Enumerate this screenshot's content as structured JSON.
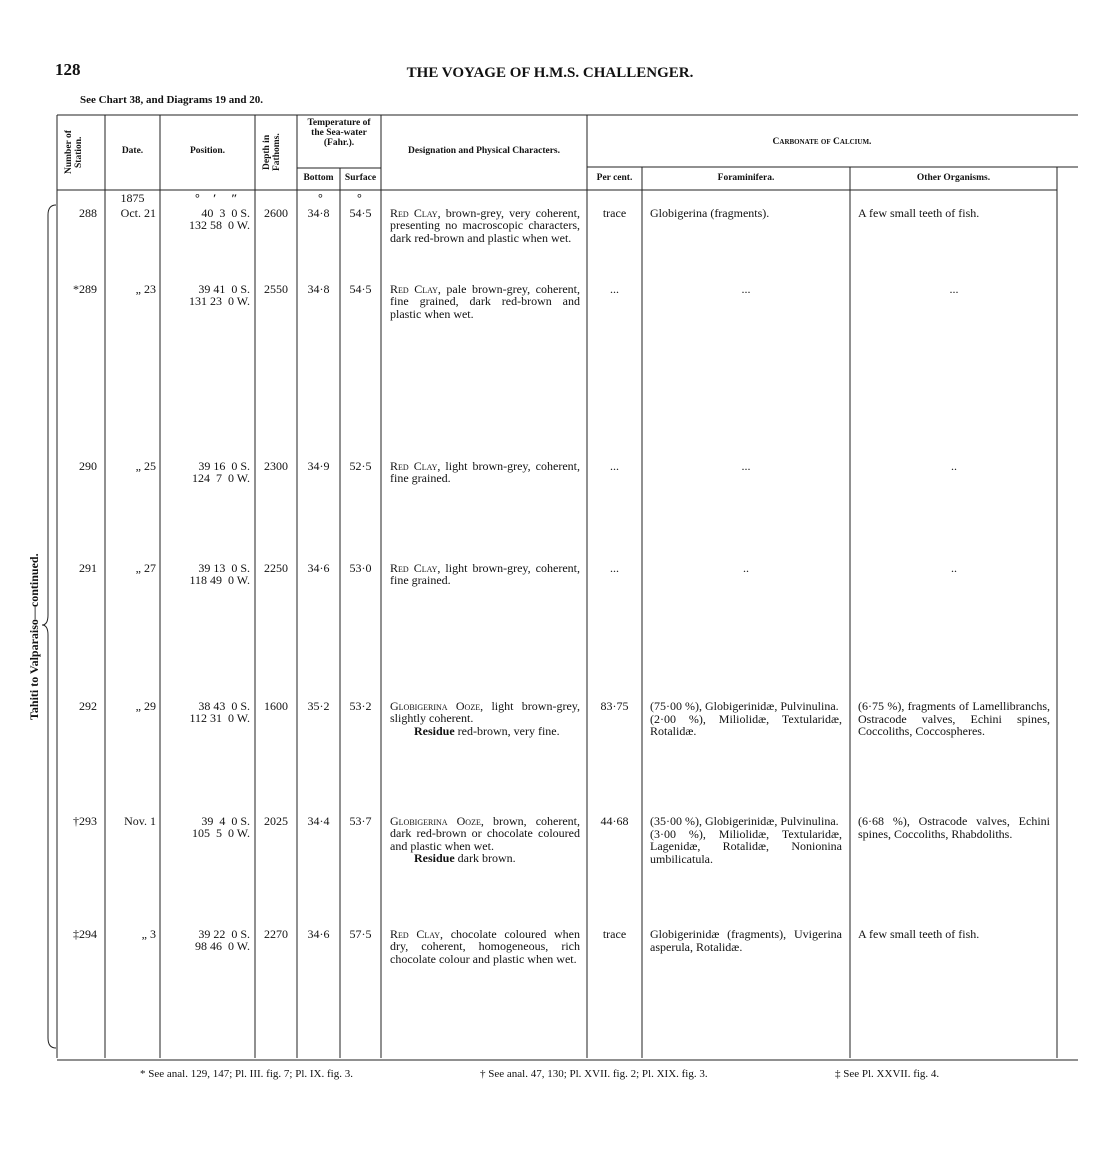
{
  "header": {
    "page_number": "128",
    "title": "THE VOYAGE OF H.M.S. CHALLENGER.",
    "reference": "See Chart 38, and Diagrams 19 and 20."
  },
  "side_label": "Tahiti to Valparaiso—continued.",
  "table": {
    "columns": {
      "station": "Number of Station.",
      "date": "Date.",
      "position": "Position.",
      "depth": "Depth in Fathoms.",
      "temperature": "Temperature of the Sea-water (Fahr.).",
      "bottom": "Bottom",
      "surface": "Surface",
      "designation": "Designation and Physical Characters.",
      "carbonate": "Carbonate of Calcium.",
      "percent": "Per cent.",
      "foraminifera": "Foraminifera.",
      "other": "Other Organisms."
    },
    "units": {
      "degree": "°",
      "minute": "′",
      "second": "″"
    },
    "year": "1875",
    "rows": [
      {
        "station": "288",
        "date": "Oct. 21",
        "lat": "40  3  0 S.",
        "lon": "132 58  0 W.",
        "depth": "2600",
        "bottom": "34·8",
        "surface": "54·5",
        "designation_name": "Red Clay",
        "designation_text": ", brown-grey, very coherent, presenting no macroscopic characters, dark red-brown and plastic when wet.",
        "percent": "trace",
        "foraminifera": [
          "Globigerina (fragments)."
        ],
        "other": "A few small teeth of fish."
      },
      {
        "station": "*289",
        "date": "„ 23",
        "lat": "39 41  0 S.",
        "lon": "131 23  0 W.",
        "depth": "2550",
        "bottom": "34·8",
        "surface": "54·5",
        "designation_name": "Red Clay",
        "designation_text": ", pale brown-grey, coherent, fine grained, dark red-brown and plastic when wet.",
        "percent": "...",
        "foraminifera": [
          "..."
        ],
        "other": "..."
      },
      {
        "station": "290",
        "date": "„ 25",
        "lat": "39 16  0 S.",
        "lon": "124  7  0 W.",
        "depth": "2300",
        "bottom": "34·9",
        "surface": "52·5",
        "designation_name": "Red Clay",
        "designation_text": ", light brown-grey, coherent, fine grained.",
        "percent": "...",
        "foraminifera": [
          "..."
        ],
        "other": ".."
      },
      {
        "station": "291",
        "date": "„ 27",
        "lat": "39 13  0 S.",
        "lon": "118 49  0 W.",
        "depth": "2250",
        "bottom": "34·6",
        "surface": "53·0",
        "designation_name": "Red Clay",
        "designation_text": ", light brown-grey, coherent, fine grained.",
        "percent": "...",
        "foraminifera": [
          ".."
        ],
        "other": ".."
      },
      {
        "station": "292",
        "date": "„ 29",
        "lat": "38 43  0 S.",
        "lon": "112 31  0 W.",
        "depth": "1600",
        "bottom": "35·2",
        "surface": "53·2",
        "designation_name": "Globigerina Ooze",
        "designation_text": ", light brown-grey, slightly coherent.",
        "residue_label": "Residue",
        "residue_text": "red-brown, very fine.",
        "percent": "83·75",
        "foraminifera": [
          "(75·00 %), Globigerinidæ, Pulvinulina.",
          "(2·00 %), Miliolidæ, Textularidæ, Rotalidæ."
        ],
        "other": "(6·75 %), fragments of Lamellibranchs, Ostracode valves, Echini spines, Coccoliths, Coccospheres."
      },
      {
        "station": "†293",
        "date": "Nov. 1",
        "lat": "39  4  0 S.",
        "lon": "105  5  0 W.",
        "depth": "2025",
        "bottom": "34·4",
        "surface": "53·7",
        "designation_name": "Globigerina Ooze",
        "designation_text": ", brown, coherent, dark red-brown or chocolate coloured and plastic when wet.",
        "residue_label": "Residue",
        "residue_text": "dark brown.",
        "percent": "44·68",
        "foraminifera": [
          "(35·00 %), Globigerinidæ, Pulvinulina.",
          "(3·00 %), Miliolidæ, Textularidæ, Lagenidæ, Rotalidæ, Nonionina umbilicatula."
        ],
        "other": "(6·68 %), Ostracode valves, Echini spines, Coccoliths, Rhabdoliths."
      },
      {
        "station": "‡294",
        "date": "„ 3",
        "lat": "39 22  0 S.",
        "lon": "98 46  0 W.",
        "depth": "2270",
        "bottom": "34·6",
        "surface": "57·5",
        "designation_name": "Red Clay",
        "designation_text": ", chocolate coloured when dry, coherent, homogeneous, rich chocolate colour and plastic when wet.",
        "percent": "trace",
        "foraminifera": [
          "Globigerinidæ (fragments), Uvigerina asperula, Rotalidæ."
        ],
        "other": "A few small teeth of fish."
      }
    ]
  },
  "footnotes": [
    "* See anal. 129, 147; Pl. III. fig. 7; Pl. IX. fig. 3.",
    "† See anal. 47, 130; Pl. XVII. fig. 2; Pl. XIX. fig. 3.",
    "‡ See Pl. XXVII. fig. 4."
  ]
}
